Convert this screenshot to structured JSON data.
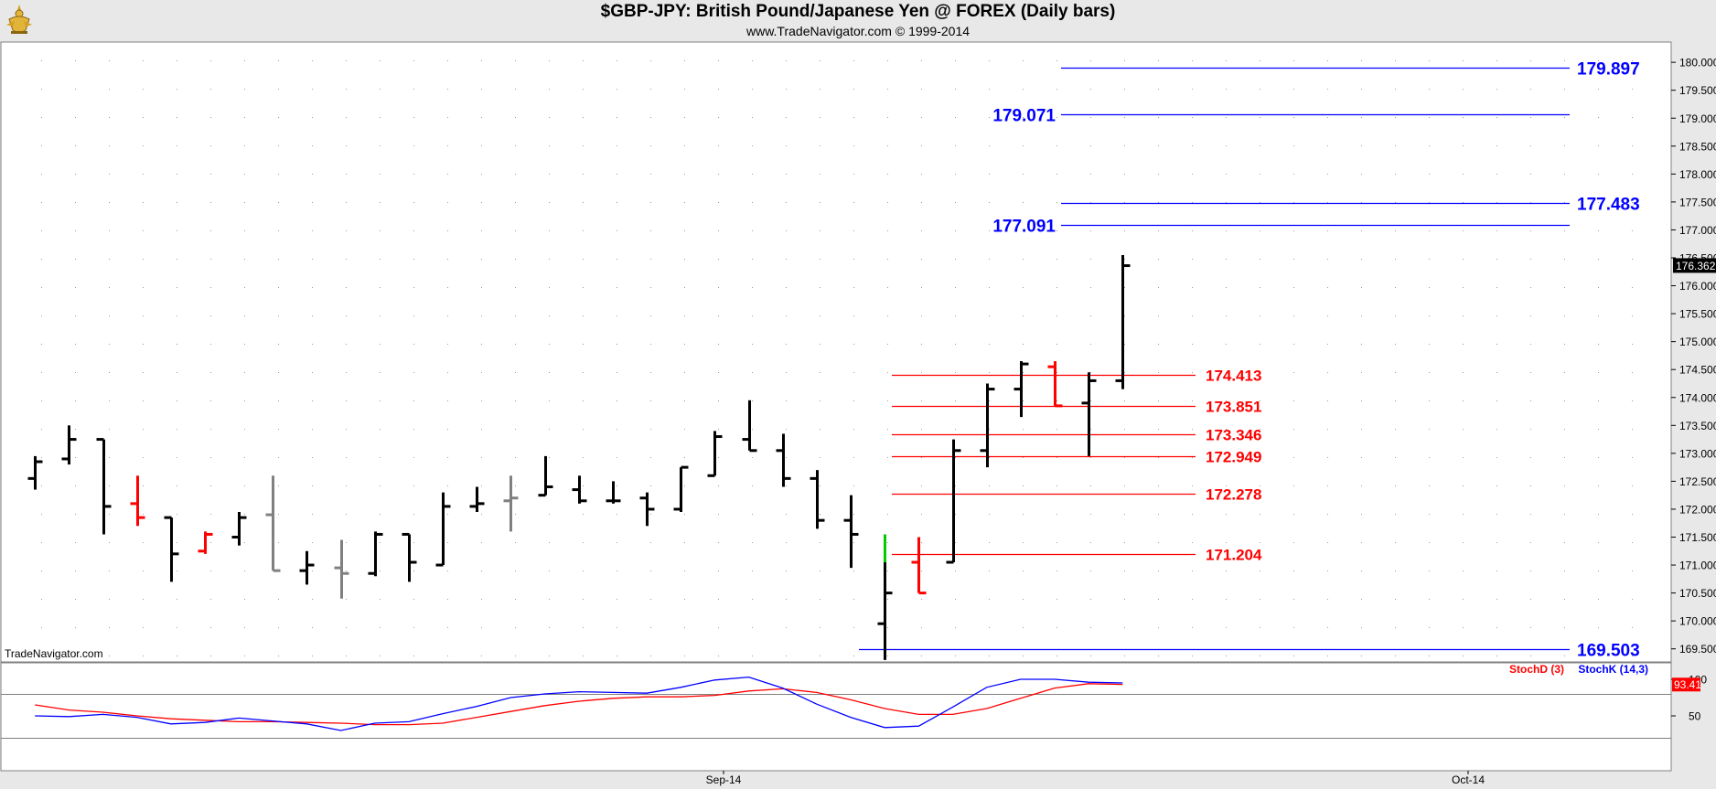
{
  "header": {
    "title": "$GBP-JPY:  British Pound/Japanese Yen @ FOREX  (Daily bars)",
    "subtitle": "www.TradeNavigator.com © 1999-2014"
  },
  "watermark": "TradeNavigator.com",
  "chart_data": [
    {
      "type": "ohlc",
      "yticks": [
        "169.500",
        "170.000",
        "170.500",
        "171.000",
        "171.500",
        "172.000",
        "172.500",
        "173.000",
        "173.500",
        "174.000",
        "174.500",
        "175.000",
        "175.500",
        "176.000",
        "176.500",
        "177.000",
        "177.500",
        "178.000",
        "178.500",
        "179.000",
        "179.500",
        "180.000"
      ],
      "ylim": [
        169.2,
        180.2
      ],
      "last_price": "176.362",
      "colors": {
        "up": "#000000",
        "down_red": "#ff0000",
        "neutral": "#808080",
        "green": "#00cc00",
        "blue_level": "#0000ff",
        "red_level": "#ff0000"
      },
      "bars": [
        {
          "i": 0,
          "o": 172.55,
          "h": 172.95,
          "l": 172.35,
          "c": 172.85,
          "color": "#000000"
        },
        {
          "i": 1,
          "o": 172.9,
          "h": 173.5,
          "l": 172.8,
          "c": 173.25,
          "color": "#000000"
        },
        {
          "i": 2,
          "o": 173.25,
          "h": 173.25,
          "l": 171.55,
          "c": 172.05,
          "color": "#000000"
        },
        {
          "i": 3,
          "o": 172.1,
          "h": 172.6,
          "l": 171.7,
          "c": 171.85,
          "color": "#ff0000"
        },
        {
          "i": 4,
          "o": 171.85,
          "h": 171.85,
          "l": 170.7,
          "c": 171.2,
          "color": "#000000"
        },
        {
          "i": 5,
          "o": 171.25,
          "h": 171.6,
          "l": 171.2,
          "c": 171.55,
          "color": "#ff0000"
        },
        {
          "i": 6,
          "o": 171.5,
          "h": 171.95,
          "l": 171.35,
          "c": 171.85,
          "color": "#000000"
        },
        {
          "i": 7,
          "o": 171.9,
          "h": 172.6,
          "l": 170.9,
          "c": 170.9,
          "color": "#808080"
        },
        {
          "i": 8,
          "o": 170.9,
          "h": 171.25,
          "l": 170.65,
          "c": 171.0,
          "color": "#000000"
        },
        {
          "i": 9,
          "o": 170.95,
          "h": 171.45,
          "l": 170.4,
          "c": 170.85,
          "color": "#808080"
        },
        {
          "i": 10,
          "o": 170.85,
          "h": 171.6,
          "l": 170.8,
          "c": 171.55,
          "color": "#000000"
        },
        {
          "i": 11,
          "o": 171.55,
          "h": 171.55,
          "l": 170.7,
          "c": 171.05,
          "color": "#000000"
        },
        {
          "i": 12,
          "o": 171.0,
          "h": 172.3,
          "l": 171.0,
          "c": 172.05,
          "color": "#000000"
        },
        {
          "i": 13,
          "o": 172.05,
          "h": 172.4,
          "l": 171.95,
          "c": 172.1,
          "color": "#000000"
        },
        {
          "i": 14,
          "o": 172.15,
          "h": 172.6,
          "l": 171.6,
          "c": 172.2,
          "color": "#808080"
        },
        {
          "i": 15,
          "o": 172.25,
          "h": 172.95,
          "l": 172.25,
          "c": 172.4,
          "color": "#000000"
        },
        {
          "i": 16,
          "o": 172.35,
          "h": 172.6,
          "l": 172.1,
          "c": 172.15,
          "color": "#000000"
        },
        {
          "i": 17,
          "o": 172.15,
          "h": 172.5,
          "l": 172.1,
          "c": 172.15,
          "color": "#000000"
        },
        {
          "i": 18,
          "o": 172.2,
          "h": 172.3,
          "l": 171.7,
          "c": 172.0,
          "color": "#000000"
        },
        {
          "i": 19,
          "o": 172.0,
          "h": 172.75,
          "l": 171.95,
          "c": 172.75,
          "color": "#000000"
        },
        {
          "i": 20,
          "o": 172.6,
          "h": 173.4,
          "l": 172.6,
          "c": 173.3,
          "color": "#000000"
        },
        {
          "i": 21,
          "o": 173.25,
          "h": 173.95,
          "l": 173.05,
          "c": 173.05,
          "color": "#000000"
        },
        {
          "i": 22,
          "o": 173.05,
          "h": 173.35,
          "l": 172.4,
          "c": 172.55,
          "color": "#000000"
        },
        {
          "i": 23,
          "o": 172.55,
          "h": 172.7,
          "l": 171.65,
          "c": 171.8,
          "color": "#000000"
        },
        {
          "i": 24,
          "o": 171.8,
          "h": 172.25,
          "l": 170.95,
          "c": 171.55,
          "color": "#000000"
        },
        {
          "i": 25,
          "o": 169.95,
          "h": 171.05,
          "l": 169.3,
          "c": 170.5,
          "color": "#000000",
          "top_color": "#00cc00",
          "top_from": 171.05,
          "top_to": 171.55
        },
        {
          "i": 26,
          "o": 171.05,
          "h": 171.5,
          "l": 170.5,
          "c": 170.5,
          "color": "#ff0000"
        },
        {
          "i": 27,
          "o": 171.05,
          "h": 173.25,
          "l": 171.05,
          "c": 173.05,
          "color": "#000000"
        },
        {
          "i": 28,
          "o": 173.05,
          "h": 174.25,
          "l": 172.75,
          "c": 174.15,
          "color": "#000000"
        },
        {
          "i": 29,
          "o": 174.15,
          "h": 174.65,
          "l": 173.65,
          "c": 174.6,
          "color": "#000000"
        },
        {
          "i": 30,
          "o": 174.55,
          "h": 174.65,
          "l": 173.85,
          "c": 173.85,
          "color": "#ff0000"
        },
        {
          "i": 31,
          "o": 173.9,
          "h": 174.45,
          "l": 172.95,
          "c": 174.3,
          "color": "#000000"
        },
        {
          "i": 32,
          "o": 174.3,
          "h": 176.55,
          "l": 174.15,
          "c": 176.36,
          "color": "#000000"
        }
      ],
      "levels": [
        {
          "value": 179.897,
          "label": "179.897",
          "color": "#0000ff",
          "label_side": "right"
        },
        {
          "value": 179.071,
          "label": "179.071",
          "color": "#0000ff",
          "label_side": "left"
        },
        {
          "value": 177.483,
          "label": "177.483",
          "color": "#0000ff",
          "label_side": "right"
        },
        {
          "value": 177.091,
          "label": "177.091",
          "color": "#0000ff",
          "label_side": "left"
        },
        {
          "value": 169.503,
          "label": "169.503",
          "color": "#0000ff",
          "label_side": "right"
        },
        {
          "value": 174.413,
          "label": "174.413",
          "color": "#ff0000",
          "label_side": "right"
        },
        {
          "value": 173.851,
          "label": "173.851",
          "color": "#ff0000",
          "label_side": "right"
        },
        {
          "value": 173.346,
          "label": "173.346",
          "color": "#ff0000",
          "label_side": "right"
        },
        {
          "value": 172.949,
          "label": "172.949",
          "color": "#ff0000",
          "label_side": "right"
        },
        {
          "value": 172.278,
          "label": "172.278",
          "color": "#ff0000",
          "label_side": "right"
        },
        {
          "value": 171.204,
          "label": "171.204",
          "color": "#ff0000",
          "label_side": "right"
        }
      ]
    },
    {
      "type": "line",
      "yticks": [
        "50",
        "100"
      ],
      "ylim": [
        0,
        100
      ],
      "last_value": "93.41",
      "reference_lines": [
        80,
        20
      ],
      "series": [
        {
          "name": "StochD (3)",
          "color": "#ff0000",
          "values": [
            65,
            58,
            55,
            50,
            46,
            44,
            42,
            42,
            41,
            40,
            38,
            38,
            40,
            48,
            56,
            64,
            70,
            74,
            76,
            76,
            78,
            84,
            87,
            82,
            72,
            60,
            52,
            52,
            60,
            74,
            88,
            94,
            93
          ]
        },
        {
          "name": "StochK (14,3)",
          "color": "#0000ff",
          "values": [
            50,
            49,
            52,
            48,
            39,
            41,
            47,
            43,
            39,
            30,
            40,
            42,
            53,
            63,
            75,
            80,
            83,
            82,
            81,
            89,
            99,
            103,
            88,
            66,
            48,
            34,
            36,
            62,
            89,
            100,
            100,
            96,
            95
          ]
        }
      ]
    }
  ],
  "xaxis": {
    "labels": [
      "Sep-14",
      "Oct-14"
    ]
  }
}
